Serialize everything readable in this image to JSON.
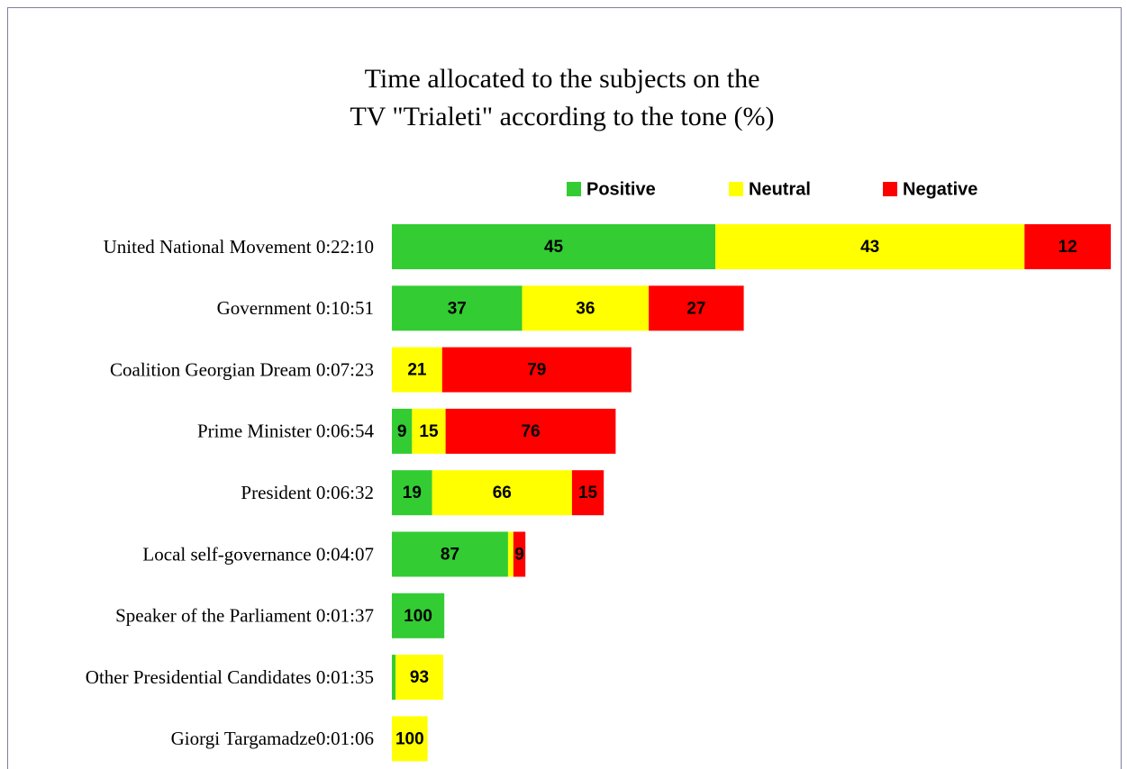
{
  "chart_data": {
    "type": "stacked-bar-horizontal",
    "title_lines": [
      "Time allocated to the subjects on the",
      "TV \"Trialeti\" according to the tone (%)"
    ],
    "categories": [
      "United National Movement 0:22:10",
      "Government 0:10:51",
      "Coalition Georgian Dream 0:07:23",
      "Prime Minister 0:06:54",
      "President 0:06:32",
      "Local self-governance 0:04:07",
      "Speaker of the Parliament 0:01:37",
      "Other Presidential Candidates 0:01:35",
      "Giorgi Targamadze0:01:06"
    ],
    "series": [
      {
        "name": "Positive",
        "color": "#33cc33",
        "values": [
          45,
          37,
          null,
          9,
          19,
          87,
          100,
          7,
          null
        ],
        "value_labels": [
          "45",
          "37",
          null,
          "9",
          "19",
          "87",
          "100",
          null,
          null
        ]
      },
      {
        "name": "Neutral",
        "color": "#ffff00",
        "values": [
          43,
          36,
          21,
          15,
          66,
          4,
          null,
          93,
          100
        ],
        "value_labels": [
          "43",
          "36",
          "21",
          "15",
          "66",
          null,
          null,
          "93",
          "100"
        ]
      },
      {
        "name": "Negative",
        "color": "#ff0000",
        "values": [
          12,
          27,
          79,
          76,
          15,
          9,
          null,
          null,
          null
        ],
        "value_labels": [
          "12",
          "27",
          "79",
          "76",
          "15",
          "9",
          null,
          null,
          null
        ]
      }
    ],
    "legend": "top"
  }
}
